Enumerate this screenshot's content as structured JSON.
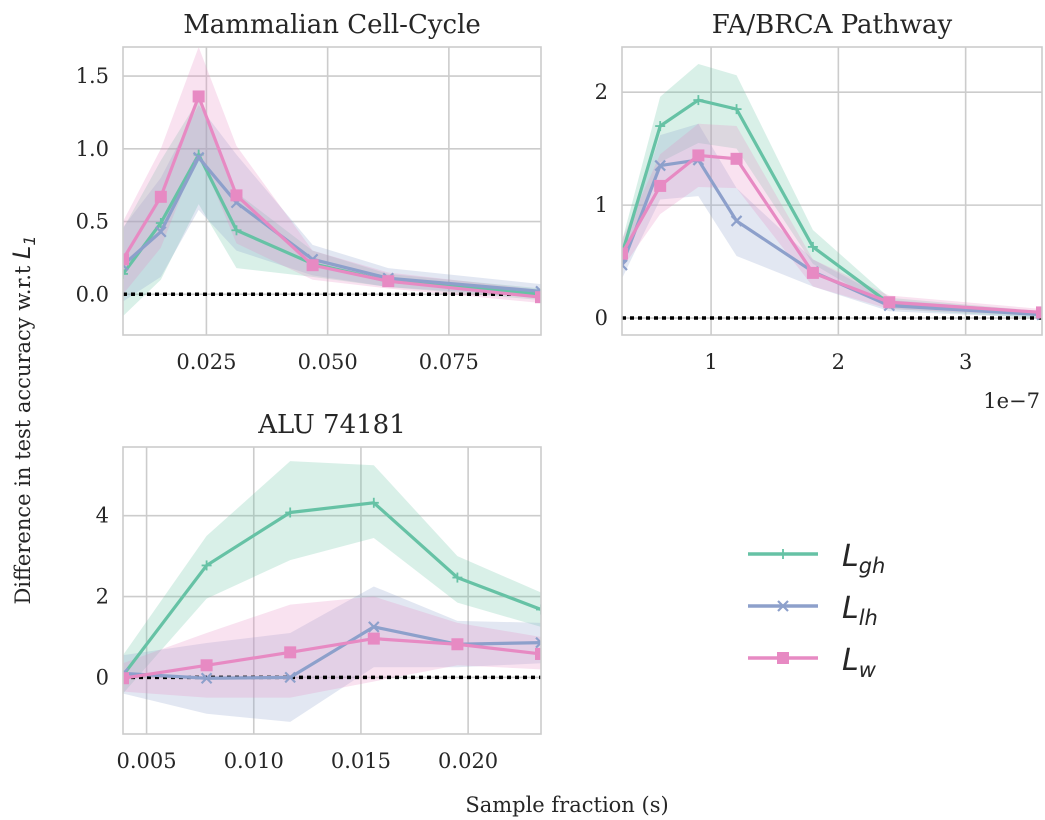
{
  "figure": {
    "ylabel_main": "Difference in test accuracy w.r.t ",
    "ylabel_symbol": "L",
    "ylabel_sub": "1",
    "xlabel": "Sample fraction (s)"
  },
  "legend": [
    {
      "symbol": "L",
      "sub": "gh",
      "color": "#66c2a5",
      "marker": "plus"
    },
    {
      "symbol": "L",
      "sub": "lh",
      "color": "#8da0cb",
      "marker": "x"
    },
    {
      "symbol": "L",
      "sub": "w",
      "color": "#e78ac3",
      "marker": "square"
    }
  ],
  "colors": {
    "gh": "#66c2a5",
    "lh": "#8da0cb",
    "w": "#e78ac3",
    "baseline": "#000000",
    "grid": "#cccccc"
  },
  "chart_data": [
    {
      "type": "line",
      "title": "Mammalian Cell-Cycle",
      "xlim": [
        0.0078,
        0.094
      ],
      "ylim": [
        -0.28,
        1.7
      ],
      "xticks": [
        0.025,
        0.05,
        0.075
      ],
      "xtick_labels": [
        "0.025",
        "0.050",
        "0.075"
      ],
      "yticks": [
        0.0,
        0.5,
        1.0,
        1.5
      ],
      "ytick_labels": [
        "0.0",
        "0.5",
        "1.0",
        "1.5"
      ],
      "offset_text": "",
      "baseline": 0,
      "x": [
        0.0078,
        0.0156,
        0.0234,
        0.0312,
        0.0469,
        0.0625,
        0.094
      ],
      "series": [
        {
          "key": "gh",
          "values": [
            0.14,
            0.49,
            0.96,
            0.44,
            0.21,
            0.09,
            0.0
          ],
          "lower": [
            -0.15,
            0.1,
            0.62,
            0.18,
            0.12,
            0.05,
            -0.04
          ],
          "upper": [
            0.45,
            0.92,
            1.34,
            0.7,
            0.3,
            0.14,
            0.04
          ]
        },
        {
          "key": "lh",
          "values": [
            0.2,
            0.43,
            0.94,
            0.63,
            0.24,
            0.11,
            0.02
          ],
          "lower": [
            -0.05,
            0.12,
            0.58,
            0.3,
            0.13,
            0.05,
            -0.02
          ],
          "upper": [
            0.46,
            0.8,
            1.3,
            0.96,
            0.34,
            0.18,
            0.07
          ]
        },
        {
          "key": "w",
          "values": [
            0.24,
            0.67,
            1.36,
            0.68,
            0.2,
            0.09,
            -0.02
          ],
          "lower": [
            0.0,
            0.32,
            0.98,
            0.35,
            0.1,
            0.04,
            -0.06
          ],
          "upper": [
            0.5,
            1.0,
            1.7,
            1.02,
            0.3,
            0.15,
            0.03
          ]
        }
      ]
    },
    {
      "type": "line",
      "title": "FA/BRCA Pathway",
      "xlim": [
        0.3,
        3.6
      ],
      "ylim": [
        -0.15,
        2.4
      ],
      "xticks": [
        1,
        2,
        3
      ],
      "xtick_labels": [
        "1",
        "2",
        "3"
      ],
      "yticks": [
        0,
        1,
        2
      ],
      "ytick_labels": [
        "0",
        "1",
        "2"
      ],
      "offset_text": "1e−7",
      "baseline": 0,
      "x": [
        0.3,
        0.6,
        0.9,
        1.2,
        1.8,
        2.4,
        3.6
      ],
      "series": [
        {
          "key": "gh",
          "values": [
            0.57,
            1.7,
            1.93,
            1.85,
            0.63,
            0.13,
            0.03
          ],
          "lower": [
            0.45,
            1.38,
            1.55,
            1.5,
            0.48,
            0.08,
            0.0
          ],
          "upper": [
            0.68,
            1.96,
            2.25,
            2.15,
            0.78,
            0.18,
            0.06
          ]
        },
        {
          "key": "lh",
          "values": [
            0.47,
            1.35,
            1.4,
            0.86,
            0.41,
            0.11,
            0.03
          ],
          "lower": [
            0.35,
            1.05,
            1.08,
            0.55,
            0.28,
            0.06,
            0.0
          ],
          "upper": [
            0.6,
            1.62,
            1.72,
            1.15,
            0.52,
            0.16,
            0.06
          ]
        },
        {
          "key": "w",
          "values": [
            0.57,
            1.17,
            1.44,
            1.41,
            0.4,
            0.14,
            0.05
          ],
          "lower": [
            0.44,
            0.92,
            1.16,
            1.15,
            0.28,
            0.08,
            0.02
          ],
          "upper": [
            0.7,
            1.45,
            1.72,
            1.7,
            0.52,
            0.2,
            0.08
          ]
        }
      ]
    },
    {
      "type": "line",
      "title": "ALU 74181",
      "xlim": [
        0.0039,
        0.0234
      ],
      "ylim": [
        -1.4,
        5.7
      ],
      "xticks": [
        0.005,
        0.01,
        0.015,
        0.02
      ],
      "xtick_labels": [
        "0.005",
        "0.010",
        "0.015",
        "0.020"
      ],
      "yticks": [
        0,
        2,
        4
      ],
      "ytick_labels": [
        "0",
        "2",
        "4"
      ],
      "offset_text": "",
      "baseline": 0,
      "x": [
        0.0039,
        0.0078,
        0.0117,
        0.0156,
        0.0195,
        0.0234
      ],
      "series": [
        {
          "key": "gh",
          "values": [
            0.05,
            2.77,
            4.08,
            4.32,
            2.47,
            1.68
          ],
          "lower": [
            -0.4,
            1.95,
            2.9,
            3.45,
            1.85,
            1.25
          ],
          "upper": [
            0.55,
            3.5,
            5.35,
            5.25,
            3.0,
            2.1
          ]
        },
        {
          "key": "lh",
          "values": [
            0.1,
            -0.02,
            0.0,
            1.25,
            0.82,
            0.86
          ],
          "lower": [
            -0.4,
            -0.9,
            -1.1,
            0.25,
            0.25,
            0.35
          ],
          "upper": [
            0.55,
            0.85,
            1.1,
            2.25,
            1.4,
            1.35
          ]
        },
        {
          "key": "w",
          "values": [
            -0.02,
            0.3,
            0.62,
            0.96,
            0.82,
            0.58
          ],
          "lower": [
            -0.35,
            -0.5,
            -0.5,
            -0.1,
            0.3,
            0.2
          ],
          "upper": [
            0.35,
            1.1,
            1.8,
            2.0,
            1.35,
            1.0
          ]
        }
      ]
    }
  ]
}
